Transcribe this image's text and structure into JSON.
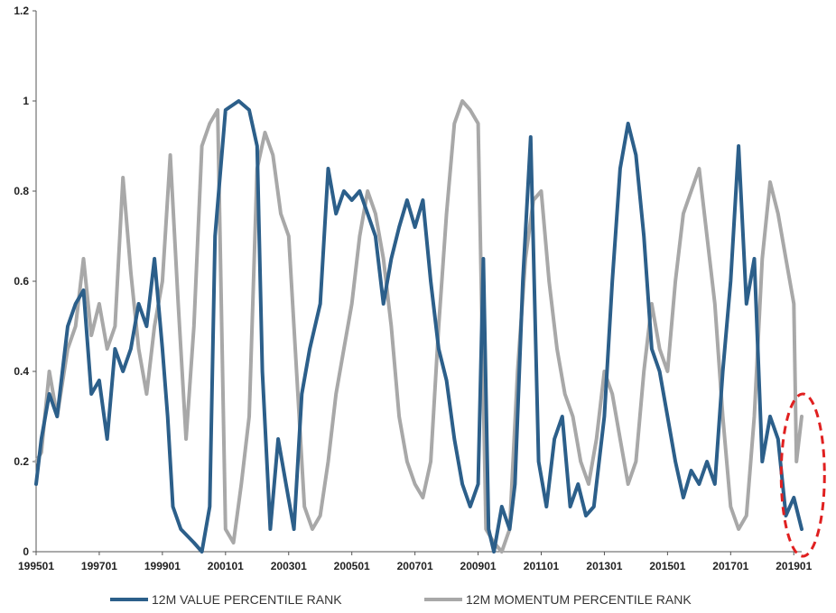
{
  "chart_data": {
    "type": "line",
    "title": "",
    "xlabel": "",
    "ylabel": "",
    "ylim": [
      0,
      1.2
    ],
    "y_ticks": [
      "0",
      "0.2",
      "0.4",
      "0.6",
      "0.8",
      "1",
      "1.2"
    ],
    "x_tick_labels": [
      "199501",
      "199701",
      "199901",
      "200101",
      "200301",
      "200501",
      "200701",
      "200901",
      "201101",
      "201301",
      "201501",
      "201701",
      "201901"
    ],
    "x_start": "1995-01",
    "x_end": "2019-04",
    "grid": false,
    "legend_position": "bottom",
    "annotation": "red dashed ellipse highlighting latest values (2019)",
    "series": [
      {
        "name": "12M VALUE PERCENTILE RANK",
        "color": "#2c5f8a",
        "points": [
          [
            "1995-01",
            0.15
          ],
          [
            "1995-03",
            0.25
          ],
          [
            "1995-06",
            0.35
          ],
          [
            "1995-09",
            0.3
          ],
          [
            "1996-01",
            0.5
          ],
          [
            "1996-04",
            0.55
          ],
          [
            "1996-07",
            0.58
          ],
          [
            "1996-10",
            0.35
          ],
          [
            "1997-01",
            0.38
          ],
          [
            "1997-04",
            0.25
          ],
          [
            "1997-07",
            0.45
          ],
          [
            "1997-10",
            0.4
          ],
          [
            "1998-01",
            0.45
          ],
          [
            "1998-04",
            0.55
          ],
          [
            "1998-07",
            0.5
          ],
          [
            "1998-10",
            0.65
          ],
          [
            "1999-01",
            0.45
          ],
          [
            "1999-03",
            0.3
          ],
          [
            "1999-05",
            0.1
          ],
          [
            "1999-08",
            0.05
          ],
          [
            "2000-01",
            0.02
          ],
          [
            "2000-04",
            0.0
          ],
          [
            "2000-07",
            0.1
          ],
          [
            "2000-09",
            0.7
          ],
          [
            "2001-01",
            0.98
          ],
          [
            "2001-06",
            1.0
          ],
          [
            "2001-10",
            0.98
          ],
          [
            "2002-01",
            0.9
          ],
          [
            "2002-03",
            0.4
          ],
          [
            "2002-06",
            0.05
          ],
          [
            "2002-09",
            0.25
          ],
          [
            "2002-12",
            0.15
          ],
          [
            "2003-03",
            0.05
          ],
          [
            "2003-06",
            0.35
          ],
          [
            "2003-09",
            0.45
          ],
          [
            "2004-01",
            0.55
          ],
          [
            "2004-04",
            0.85
          ],
          [
            "2004-07",
            0.75
          ],
          [
            "2004-10",
            0.8
          ],
          [
            "2005-01",
            0.78
          ],
          [
            "2005-04",
            0.8
          ],
          [
            "2005-07",
            0.75
          ],
          [
            "2005-10",
            0.7
          ],
          [
            "2006-01",
            0.55
          ],
          [
            "2006-04",
            0.65
          ],
          [
            "2006-07",
            0.72
          ],
          [
            "2006-10",
            0.78
          ],
          [
            "2007-01",
            0.72
          ],
          [
            "2007-04",
            0.78
          ],
          [
            "2007-07",
            0.6
          ],
          [
            "2007-10",
            0.45
          ],
          [
            "2008-01",
            0.38
          ],
          [
            "2008-04",
            0.25
          ],
          [
            "2008-07",
            0.15
          ],
          [
            "2008-10",
            0.1
          ],
          [
            "2009-01",
            0.15
          ],
          [
            "2009-03",
            0.65
          ],
          [
            "2009-05",
            0.05
          ],
          [
            "2009-07",
            0.0
          ],
          [
            "2009-10",
            0.1
          ],
          [
            "2010-01",
            0.05
          ],
          [
            "2010-03",
            0.15
          ],
          [
            "2010-06",
            0.6
          ],
          [
            "2010-09",
            0.92
          ],
          [
            "2010-12",
            0.2
          ],
          [
            "2011-03",
            0.1
          ],
          [
            "2011-06",
            0.25
          ],
          [
            "2011-09",
            0.3
          ],
          [
            "2011-12",
            0.1
          ],
          [
            "2012-03",
            0.15
          ],
          [
            "2012-06",
            0.08
          ],
          [
            "2012-09",
            0.1
          ],
          [
            "2013-01",
            0.3
          ],
          [
            "2013-04",
            0.6
          ],
          [
            "2013-07",
            0.85
          ],
          [
            "2013-10",
            0.95
          ],
          [
            "2014-01",
            0.88
          ],
          [
            "2014-04",
            0.7
          ],
          [
            "2014-07",
            0.45
          ],
          [
            "2014-10",
            0.4
          ],
          [
            "2015-01",
            0.3
          ],
          [
            "2015-04",
            0.2
          ],
          [
            "2015-07",
            0.12
          ],
          [
            "2015-10",
            0.18
          ],
          [
            "2016-01",
            0.15
          ],
          [
            "2016-04",
            0.2
          ],
          [
            "2016-07",
            0.15
          ],
          [
            "2016-10",
            0.4
          ],
          [
            "2017-01",
            0.6
          ],
          [
            "2017-04",
            0.9
          ],
          [
            "2017-07",
            0.55
          ],
          [
            "2017-10",
            0.65
          ],
          [
            "2018-01",
            0.2
          ],
          [
            "2018-04",
            0.3
          ],
          [
            "2018-07",
            0.25
          ],
          [
            "2018-10",
            0.08
          ],
          [
            "2019-01",
            0.12
          ],
          [
            "2019-04",
            0.05
          ]
        ]
      },
      {
        "name": "12M MOMENTUM PERCENTILE RANK",
        "color": "#a8a8a8",
        "points": [
          [
            "1995-01",
            0.2
          ],
          [
            "1995-03",
            0.22
          ],
          [
            "1995-06",
            0.4
          ],
          [
            "1995-09",
            0.3
          ],
          [
            "1996-01",
            0.45
          ],
          [
            "1996-04",
            0.5
          ],
          [
            "1996-07",
            0.65
          ],
          [
            "1996-10",
            0.48
          ],
          [
            "1997-01",
            0.55
          ],
          [
            "1997-04",
            0.45
          ],
          [
            "1997-07",
            0.5
          ],
          [
            "1997-10",
            0.83
          ],
          [
            "1998-01",
            0.62
          ],
          [
            "1998-04",
            0.45
          ],
          [
            "1998-07",
            0.35
          ],
          [
            "1998-10",
            0.5
          ],
          [
            "1999-01",
            0.6
          ],
          [
            "1999-04",
            0.88
          ],
          [
            "1999-07",
            0.55
          ],
          [
            "1999-10",
            0.25
          ],
          [
            "2000-01",
            0.5
          ],
          [
            "2000-04",
            0.9
          ],
          [
            "2000-07",
            0.95
          ],
          [
            "2000-10",
            0.98
          ],
          [
            "2001-01",
            0.05
          ],
          [
            "2001-04",
            0.02
          ],
          [
            "2001-07",
            0.15
          ],
          [
            "2001-10",
            0.3
          ],
          [
            "2002-01",
            0.85
          ],
          [
            "2002-04",
            0.93
          ],
          [
            "2002-07",
            0.88
          ],
          [
            "2002-10",
            0.75
          ],
          [
            "2003-01",
            0.7
          ],
          [
            "2003-04",
            0.4
          ],
          [
            "2003-07",
            0.1
          ],
          [
            "2003-10",
            0.05
          ],
          [
            "2004-01",
            0.08
          ],
          [
            "2004-04",
            0.2
          ],
          [
            "2004-07",
            0.35
          ],
          [
            "2004-10",
            0.45
          ],
          [
            "2005-01",
            0.55
          ],
          [
            "2005-04",
            0.7
          ],
          [
            "2005-07",
            0.8
          ],
          [
            "2005-10",
            0.75
          ],
          [
            "2006-01",
            0.65
          ],
          [
            "2006-04",
            0.5
          ],
          [
            "2006-07",
            0.3
          ],
          [
            "2006-10",
            0.2
          ],
          [
            "2007-01",
            0.15
          ],
          [
            "2007-04",
            0.12
          ],
          [
            "2007-07",
            0.2
          ],
          [
            "2007-10",
            0.5
          ],
          [
            "2008-01",
            0.75
          ],
          [
            "2008-04",
            0.95
          ],
          [
            "2008-07",
            1.0
          ],
          [
            "2008-10",
            0.98
          ],
          [
            "2009-01",
            0.95
          ],
          [
            "2009-04",
            0.05
          ],
          [
            "2009-07",
            0.02
          ],
          [
            "2009-10",
            0.0
          ],
          [
            "2010-01",
            0.05
          ],
          [
            "2010-04",
            0.4
          ],
          [
            "2010-07",
            0.65
          ],
          [
            "2010-10",
            0.78
          ],
          [
            "2011-01",
            0.8
          ],
          [
            "2011-04",
            0.6
          ],
          [
            "2011-07",
            0.45
          ],
          [
            "2011-10",
            0.35
          ],
          [
            "2012-01",
            0.3
          ],
          [
            "2012-04",
            0.2
          ],
          [
            "2012-07",
            0.15
          ],
          [
            "2012-10",
            0.25
          ],
          [
            "2013-01",
            0.4
          ],
          [
            "2013-04",
            0.35
          ],
          [
            "2013-07",
            0.25
          ],
          [
            "2013-10",
            0.15
          ],
          [
            "2014-01",
            0.2
          ],
          [
            "2014-04",
            0.4
          ],
          [
            "2014-07",
            0.55
          ],
          [
            "2014-10",
            0.45
          ],
          [
            "2015-01",
            0.4
          ],
          [
            "2015-04",
            0.6
          ],
          [
            "2015-07",
            0.75
          ],
          [
            "2015-10",
            0.8
          ],
          [
            "2016-01",
            0.85
          ],
          [
            "2016-04",
            0.7
          ],
          [
            "2016-07",
            0.55
          ],
          [
            "2016-10",
            0.3
          ],
          [
            "2017-01",
            0.1
          ],
          [
            "2017-04",
            0.05
          ],
          [
            "2017-07",
            0.08
          ],
          [
            "2017-10",
            0.3
          ],
          [
            "2018-01",
            0.65
          ],
          [
            "2018-04",
            0.82
          ],
          [
            "2018-07",
            0.75
          ],
          [
            "2018-10",
            0.65
          ],
          [
            "2019-01",
            0.55
          ],
          [
            "2019-02",
            0.2
          ],
          [
            "2019-04",
            0.3
          ]
        ]
      }
    ]
  },
  "legend": {
    "value_label": "12M VALUE PERCENTILE RANK",
    "momentum_label": "12M MOMENTUM PERCENTILE RANK"
  },
  "colors": {
    "value": "#2c5f8a",
    "momentum": "#a8a8a8",
    "annotation": "#e02020",
    "axis": "#555555"
  }
}
